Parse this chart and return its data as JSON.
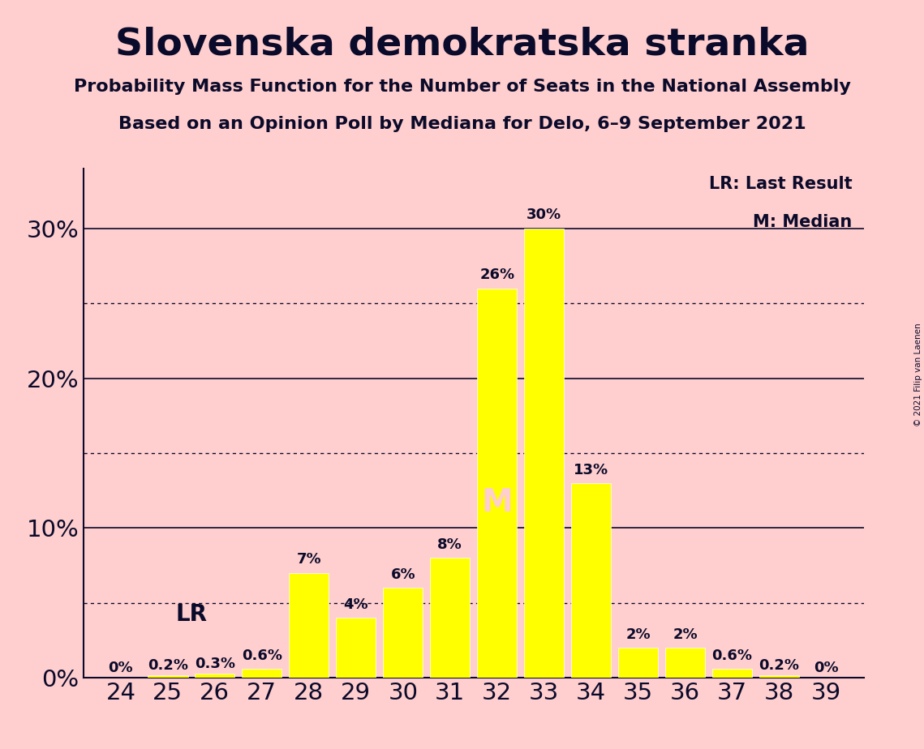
{
  "title": "Slovenska demokratska stranka",
  "subtitle1": "Probability Mass Function for the Number of Seats in the National Assembly",
  "subtitle2": "Based on an Opinion Poll by Mediana for Delo, 6–9 September 2021",
  "copyright": "© 2021 Filip van Laenen",
  "seats": [
    24,
    25,
    26,
    27,
    28,
    29,
    30,
    31,
    32,
    33,
    34,
    35,
    36,
    37,
    38,
    39
  ],
  "probabilities": [
    0.0,
    0.2,
    0.3,
    0.6,
    7.0,
    4.0,
    6.0,
    8.0,
    26.0,
    30.0,
    13.0,
    2.0,
    2.0,
    0.6,
    0.2,
    0.0
  ],
  "bar_color": "#FFFF00",
  "background_color": "#FFCECE",
  "text_color": "#0a0a2a",
  "last_result_seat": 27,
  "median_seat": 32,
  "yticks": [
    0,
    10,
    20,
    30
  ],
  "ylim": [
    0,
    34
  ],
  "legend_lr": "LR: Last Result",
  "legend_m": "M: Median",
  "bar_labels": [
    "0%",
    "0.2%",
    "0.3%",
    "0.6%",
    "7%",
    "4%",
    "6%",
    "8%",
    "26%",
    "30%",
    "13%",
    "2%",
    "2%",
    "0.6%",
    "0.2%",
    "0%"
  ],
  "solid_lines": [
    0,
    10,
    20,
    30
  ],
  "dotted_lines": [
    5,
    15,
    25
  ]
}
